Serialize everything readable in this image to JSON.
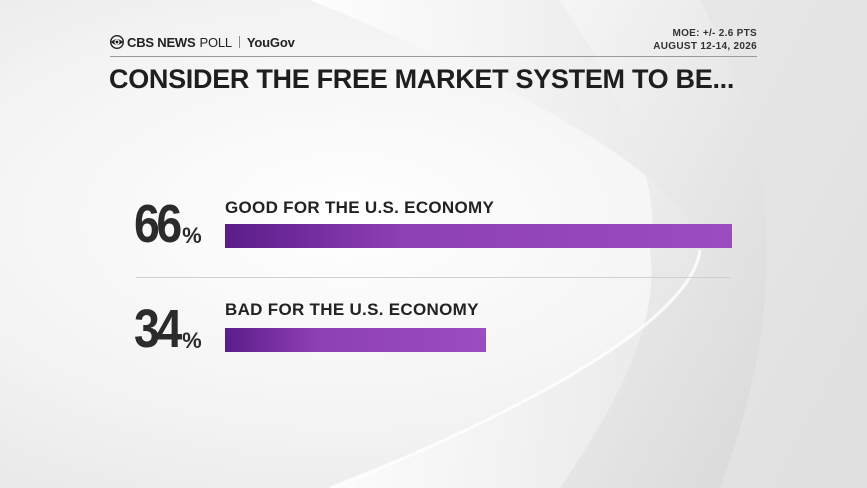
{
  "header": {
    "brand_primary": "CBS NEWS",
    "brand_secondary": "POLL",
    "partner": "YouGov",
    "moe": "MOE: +/- 2.6 PTS",
    "date": "AUGUST 12-14, 2026"
  },
  "icons": {
    "brand_logo": "cbs-eye-icon"
  },
  "colors": {
    "bar_dark": "#5b1d8a",
    "bar_light": "#9a4cc0",
    "text": "#222222"
  },
  "chart_data": {
    "type": "bar",
    "orientation": "horizontal",
    "title": "CONSIDER THE FREE MARKET SYSTEM TO BE...",
    "categories": [
      "GOOD FOR THE U.S. ECONOMY",
      "BAD FOR THE U.S. ECONOMY"
    ],
    "values": [
      66,
      34
    ],
    "value_labels": [
      "66",
      "34"
    ],
    "value_suffix": "%",
    "xlim": [
      0,
      66
    ]
  }
}
